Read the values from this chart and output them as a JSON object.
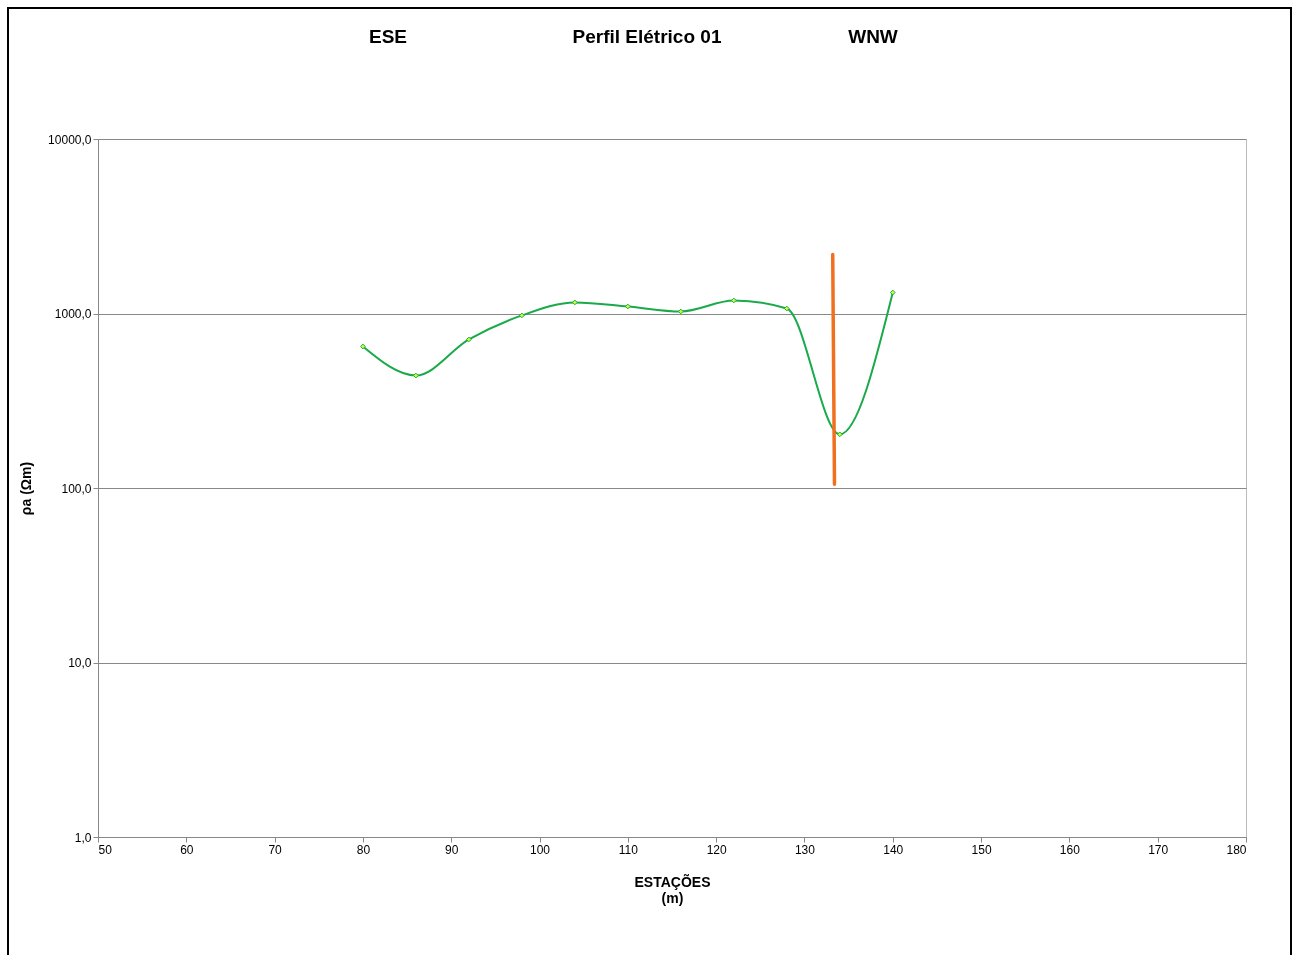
{
  "chart_data": {
    "type": "line",
    "title": "Perfil Elétrico 01",
    "annotations": [
      "ESE",
      "WNW"
    ],
    "xlabel": "ESTAÇÕES\n(m)",
    "ylabel": "ρa (Ωm)",
    "log": "y",
    "grid": "y",
    "marker": "diamond",
    "line_style": "solid",
    "xlim": [
      50,
      180
    ],
    "xticks": [
      50,
      60,
      70,
      80,
      90,
      100,
      110,
      120,
      130,
      140,
      150,
      160,
      170,
      180
    ],
    "ylim": [
      1,
      10000
    ],
    "yticks": [
      {
        "value": 1,
        "label": "1,0"
      },
      {
        "value": 10,
        "label": "10,0"
      },
      {
        "value": 100,
        "label": "100,0"
      },
      {
        "value": 1000,
        "label": "1000,0"
      },
      {
        "value": 10000,
        "label": "10000,0"
      }
    ],
    "x": [
      80,
      86,
      92,
      98,
      104,
      110,
      116,
      122,
      128,
      134,
      140
    ],
    "series": [
      {
        "color": "#1aaa4a",
        "values": [
          647,
          441,
          710,
          975,
          1157,
          1097,
          1027,
          1187,
          1068,
          203,
          1319
        ]
      },
      {
        "type": "line",
        "marker": "none",
        "color": "#f07020",
        "x": [
          133.2,
          133.4
        ],
        "values": [
          2180,
          105
        ]
      }
    ]
  }
}
